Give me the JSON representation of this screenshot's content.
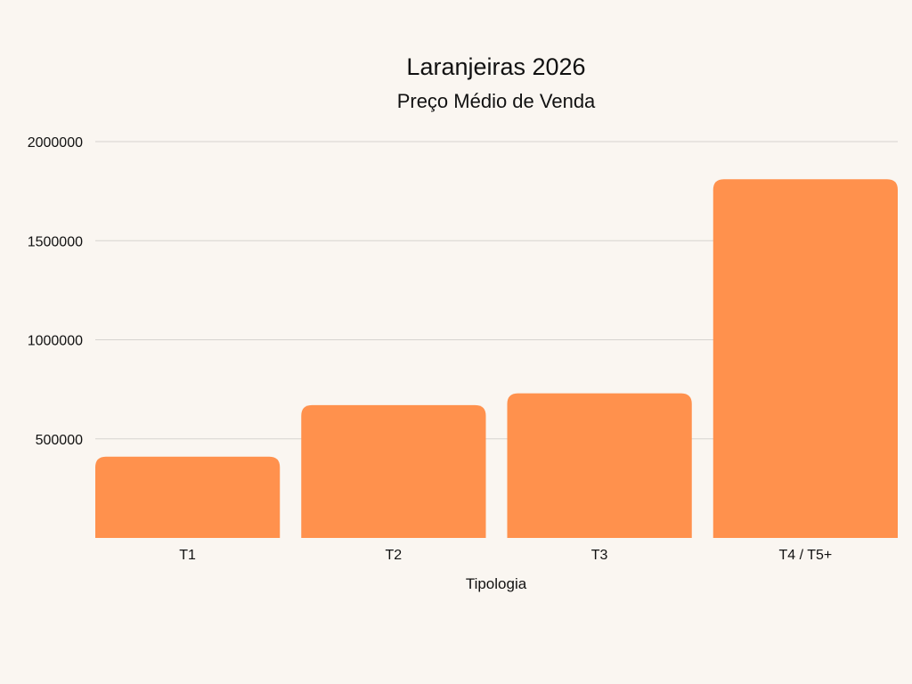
{
  "chart_data": {
    "type": "bar",
    "title": "Laranjeiras 2026",
    "subtitle": "Preço Médio de Venda",
    "xlabel": "Tipologia",
    "ylabel": "",
    "categories": [
      "T1",
      "T2",
      "T3",
      "T4 / T5+"
    ],
    "values": [
      410000,
      670000,
      730000,
      1810000
    ],
    "yticks": [
      500000,
      1000000,
      1500000,
      2000000
    ],
    "ylim": [
      0,
      2000000
    ],
    "grid": true,
    "bar_color": "#ff914d"
  }
}
